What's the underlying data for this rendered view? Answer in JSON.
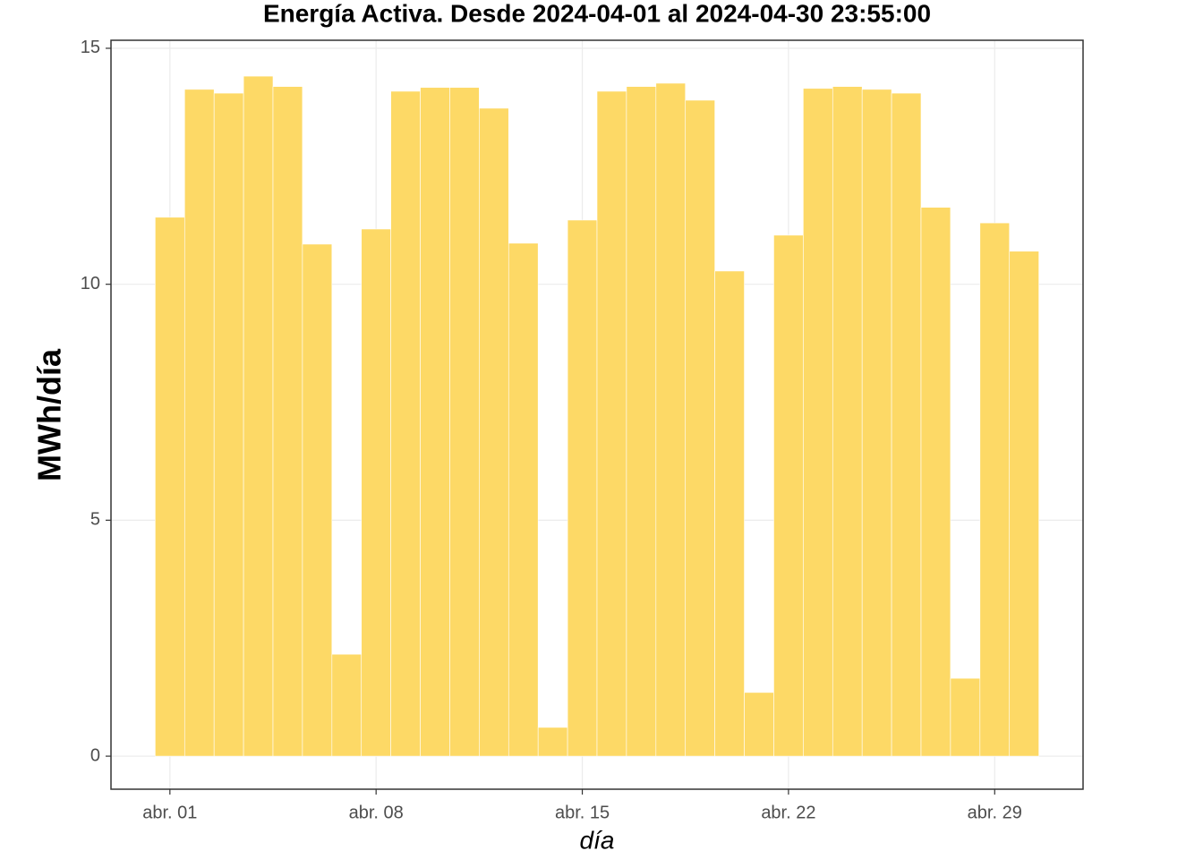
{
  "chart_data": {
    "type": "bar",
    "title": "Energía Activa. Desde  2024-04-01  al  2024-04-30 23:55:00",
    "x_label": "día",
    "y_label": "MWh/día",
    "x": [
      "2024-04-01",
      "2024-04-02",
      "2024-04-03",
      "2024-04-04",
      "2024-04-05",
      "2024-04-06",
      "2024-04-07",
      "2024-04-08",
      "2024-04-09",
      "2024-04-10",
      "2024-04-11",
      "2024-04-12",
      "2024-04-13",
      "2024-04-14",
      "2024-04-15",
      "2024-04-16",
      "2024-04-17",
      "2024-04-18",
      "2024-04-19",
      "2024-04-20",
      "2024-04-21",
      "2024-04-22",
      "2024-04-23",
      "2024-04-24",
      "2024-04-25",
      "2024-04-26",
      "2024-04-27",
      "2024-04-28",
      "2024-04-29",
      "2024-04-30"
    ],
    "values": [
      11.42,
      14.13,
      14.05,
      14.41,
      14.19,
      10.85,
      2.16,
      11.17,
      14.09,
      14.17,
      14.17,
      13.73,
      10.87,
      0.61,
      11.36,
      14.09,
      14.19,
      14.26,
      13.9,
      10.28,
      1.35,
      11.04,
      14.15,
      14.19,
      14.13,
      14.05,
      11.63,
      1.65,
      11.3,
      10.7
    ],
    "color": "#fdd966",
    "xlim": [
      "2024-03-30",
      "2024-05-02"
    ],
    "xticks": [
      {
        "value": "2024-04-01",
        "label": "abr. 01"
      },
      {
        "value": "2024-04-08",
        "label": "abr. 08"
      },
      {
        "value": "2024-04-15",
        "label": "abr. 15"
      },
      {
        "value": "2024-04-22",
        "label": "abr. 22"
      },
      {
        "value": "2024-04-29",
        "label": "abr. 29"
      }
    ],
    "ylim": [
      -0.7,
      15.17
    ],
    "yticks": [
      0,
      5,
      10,
      15
    ],
    "grid": true
  }
}
